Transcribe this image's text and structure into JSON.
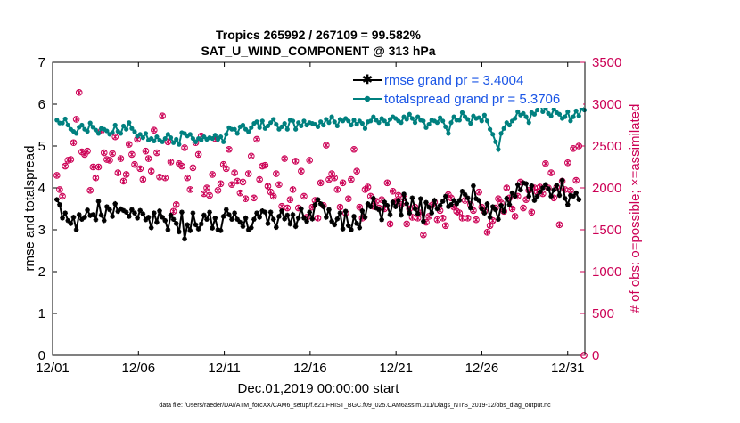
{
  "chart_data": {
    "type": "line",
    "title": "Tropics 265992 / 267109 = 99.582%",
    "subtitle": "SAT_U_WIND_COMPONENT @ 313 hPa",
    "xlabel": "Dec.01,2019 00:00:00 start",
    "ylabel_left": "rmse and totalspread",
    "ylabel_right": "# of obs: o=possible; ×=assimilated",
    "x_ticks": [
      "12/01",
      "12/06",
      "12/11",
      "12/16",
      "12/21",
      "12/26",
      "12/31"
    ],
    "x_tick_days": [
      0,
      5,
      10,
      15,
      20,
      25,
      30
    ],
    "xlim": [
      0,
      31
    ],
    "ylim_left": [
      0,
      7
    ],
    "y_ticks_left": [
      0,
      1,
      2,
      3,
      4,
      5,
      6,
      7
    ],
    "ylim_right": [
      0,
      3500
    ],
    "y_ticks_right": [
      0,
      500,
      1000,
      1500,
      2000,
      2500,
      3000,
      3500
    ],
    "colors": {
      "rmse": "#000000",
      "totalspread": "#00807f",
      "obs": "#cc0055",
      "legend_text": "#1a55e6"
    },
    "series": [
      {
        "name": "rmse grand pr = 3.4004",
        "axis": "left",
        "values": [
          3.72,
          3.6,
          3.28,
          3.4,
          3.22,
          3.15,
          3.3,
          3.0,
          3.36,
          3.25,
          3.3,
          3.47,
          3.34,
          3.36,
          3.24,
          3.68,
          3.35,
          3.22,
          3.55,
          3.48,
          3.32,
          3.62,
          3.44,
          3.5,
          3.46,
          3.42,
          3.32,
          3.48,
          3.4,
          3.28,
          3.46,
          3.38,
          3.24,
          3.3,
          3.05,
          3.4,
          3.18,
          3.45,
          3.3,
          3.22,
          3.0,
          3.35,
          3.25,
          3.15,
          2.95,
          3.42,
          2.78,
          3.12,
          2.98,
          3.4,
          3.12,
          3.02,
          3.14,
          3.35,
          3.25,
          3.42,
          3.04,
          3.28,
          3.0,
          2.98,
          3.32,
          3.48,
          3.36,
          3.25,
          3.4,
          3.25,
          3.18,
          3.08,
          3.28,
          3.0,
          3.05,
          3.25,
          3.4,
          3.3,
          3.45,
          3.42,
          3.15,
          3.42,
          3.25,
          3.06,
          3.32,
          3.45,
          3.26,
          3.35,
          3.14,
          3.36,
          3.08,
          3.28,
          3.5,
          3.28,
          3.2,
          3.42,
          3.26,
          3.6,
          3.72,
          3.62,
          3.55,
          3.3,
          3.48,
          3.2,
          3.12,
          3.26,
          3.4,
          3.02,
          3.44,
          3.1,
          3.0,
          3.32,
          3.15,
          3.05,
          3.45,
          3.3,
          3.62,
          3.55,
          3.75,
          3.52,
          3.48,
          3.24,
          3.66,
          3.58,
          3.36,
          3.66,
          3.55,
          3.7,
          3.35,
          3.85,
          3.62,
          3.4,
          3.76,
          3.5,
          3.38,
          3.74,
          3.2,
          3.65,
          3.54,
          3.4,
          3.7,
          3.5,
          3.58,
          3.68,
          3.8,
          3.55,
          3.6,
          3.7,
          3.62,
          3.7,
          3.92,
          3.84,
          3.76,
          3.52,
          4.05,
          3.74,
          3.7,
          3.5,
          3.4,
          3.62,
          3.3,
          3.55,
          3.48,
          3.25,
          3.58,
          3.44,
          3.75,
          3.6,
          3.88,
          3.8,
          4.08,
          3.95,
          4.12,
          4.1,
          3.8,
          4.05,
          3.7,
          3.8,
          3.9,
          4.0,
          4.08,
          3.98,
          3.8,
          3.95,
          4.06,
          3.82,
          4.18,
          3.75,
          3.6,
          3.82,
          3.8,
          3.88,
          3.72
        ]
      },
      {
        "name": "totalspread grand pr = 5.3706",
        "axis": "left",
        "values": [
          5.62,
          5.55,
          5.55,
          5.65,
          5.5,
          5.4,
          5.35,
          5.3,
          5.45,
          5.5,
          5.4,
          5.35,
          5.55,
          5.45,
          5.38,
          5.3,
          5.42,
          5.4,
          5.36,
          5.28,
          5.32,
          5.5,
          5.35,
          5.3,
          5.48,
          5.4,
          5.56,
          5.42,
          5.34,
          5.24,
          5.28,
          5.2,
          5.3,
          5.14,
          5.18,
          5.12,
          5.22,
          5.14,
          5.1,
          5.18,
          5.28,
          5.2,
          5.08,
          5.16,
          5.04,
          5.32,
          5.3,
          5.24,
          5.28,
          5.18,
          5.1,
          5.18,
          5.14,
          5.22,
          5.16,
          5.2,
          5.18,
          5.26,
          5.16,
          5.22,
          5.1,
          5.28,
          5.44,
          5.4,
          5.4,
          5.3,
          5.46,
          5.5,
          5.4,
          5.34,
          5.44,
          5.54,
          5.58,
          5.44,
          5.6,
          5.42,
          5.48,
          5.56,
          5.64,
          5.52,
          5.4,
          5.46,
          5.54,
          5.4,
          5.62,
          5.6,
          5.4,
          5.56,
          5.48,
          5.6,
          5.5,
          5.56,
          5.54,
          5.52,
          5.46,
          5.58,
          5.5,
          5.64,
          5.56,
          5.7,
          5.58,
          5.48,
          5.64,
          5.6,
          5.66,
          5.6,
          5.5,
          5.62,
          5.52,
          5.6,
          5.54,
          5.42,
          5.58,
          5.6,
          5.7,
          5.62,
          5.56,
          5.66,
          5.6,
          5.52,
          5.64,
          5.7,
          5.66,
          5.6,
          5.56,
          5.7,
          5.64,
          5.76,
          5.66,
          5.56,
          5.7,
          5.62,
          5.6,
          5.44,
          5.52,
          5.62,
          5.6,
          5.56,
          5.68,
          5.6,
          5.46,
          5.3,
          5.56,
          5.7,
          5.62,
          5.62,
          5.8,
          5.7,
          5.64,
          5.54,
          5.72,
          5.66,
          5.68,
          5.6,
          5.74,
          5.6,
          5.4,
          5.28,
          5.1,
          4.92,
          5.3,
          5.42,
          5.56,
          5.5,
          5.6,
          5.66,
          5.82,
          5.74,
          5.78,
          5.7,
          5.56,
          5.8,
          5.76,
          5.86,
          6.02,
          5.82,
          5.9,
          5.78,
          5.72,
          5.88,
          5.8,
          5.76,
          5.66,
          5.7,
          5.82,
          5.6,
          5.7,
          5.84,
          5.72,
          5.9,
          5.86
        ]
      },
      {
        "name": "# of obs possible",
        "axis": "right",
        "values": [
          2150,
          1980,
          1900,
          2260,
          2330,
          2340,
          2540,
          2820,
          3140,
          2430,
          2400,
          2440,
          1970,
          2250,
          2120,
          2250,
          2680,
          2420,
          2340,
          2330,
          2410,
          2610,
          2180,
          2350,
          2080,
          2160,
          2520,
          2400,
          2280,
          2580,
          2230,
          2100,
          2440,
          2350,
          2200,
          2690,
          2420,
          2130,
          2860,
          2120,
          2550,
          2310,
          1720,
          1800,
          2290,
          2260,
          2480,
          2120,
          1980,
          2240,
          2540,
          2400,
          2620,
          1930,
          2000,
          1910,
          2160,
          2590,
          1970,
          2050,
          2280,
          2230,
          2460,
          2040,
          2180,
          2080,
          1940,
          2070,
          1870,
          2170,
          2380,
          1880,
          2580,
          2100,
          2260,
          2270,
          2020,
          1950,
          1900,
          2170,
          2040,
          1780,
          2350,
          1760,
          1860,
          1980,
          2320,
          1760,
          2200,
          1900,
          1650,
          2330,
          1770,
          1850,
          1640,
          2060,
          1790,
          2510,
          2100,
          2170,
          2120,
          1980,
          1770,
          2060,
          1700,
          1870,
          2100,
          2460,
          2200,
          1770,
          1640,
          1980,
          2010,
          1900,
          1780,
          1840,
          1760,
          1860,
          1750,
          2060,
          1570,
          1960,
          1840,
          1910,
          1800,
          1880,
          1570,
          1750,
          1650,
          1770,
          1640,
          1700,
          1440,
          1590,
          1660,
          1790,
          1830,
          1620,
          1730,
          1640,
          1550,
          1920,
          1880,
          1770,
          1720,
          1700,
          1640,
          1850,
          1640,
          1800,
          1730,
          1620,
          1950,
          1770,
          1720,
          1470,
          1550,
          1610,
          1760,
          1870,
          1820,
          1720,
          2000,
          1880,
          1750,
          1660,
          1900,
          2070,
          1760,
          1860,
          1970,
          1710,
          2000,
          1950,
          2010,
          1930,
          2290,
          2000,
          2180,
          1880,
          2010,
          1560,
          2080,
          1980,
          2300,
          1970,
          2470,
          2090,
          2500,
          1890,
          2210,
          1870
        ]
      },
      {
        "name": "# of obs assimilated",
        "axis": "right",
        "values": [
          2150,
          1980,
          1900,
          2260,
          2330,
          2340,
          2540,
          2820,
          3140,
          2430,
          2400,
          2440,
          1970,
          2250,
          2120,
          2250,
          2680,
          2420,
          2340,
          2330,
          2410,
          2610,
          2180,
          2350,
          2080,
          2160,
          2520,
          2400,
          2280,
          2580,
          2230,
          2100,
          2440,
          2350,
          2200,
          2690,
          2420,
          2130,
          2860,
          2120,
          2550,
          2310,
          1720,
          1800,
          2290,
          2260,
          2480,
          2120,
          1980,
          2240,
          2540,
          2400,
          2620,
          1930,
          2000,
          1910,
          2160,
          2590,
          1970,
          2050,
          2280,
          2230,
          2460,
          2040,
          2180,
          2080,
          1940,
          2070,
          1870,
          2170,
          2380,
          1880,
          2580,
          2100,
          2260,
          2270,
          2020,
          1950,
          1900,
          2170,
          2040,
          1780,
          2350,
          1760,
          1860,
          1980,
          2320,
          1760,
          2200,
          1900,
          1650,
          2330,
          1770,
          1850,
          1640,
          2060,
          1790,
          2510,
          2100,
          2170,
          2120,
          1980,
          1770,
          2060,
          1700,
          1870,
          2100,
          2460,
          2200,
          1770,
          1640,
          1980,
          2010,
          1900,
          1780,
          1840,
          1760,
          1860,
          1750,
          2060,
          1570,
          1960,
          1840,
          1910,
          1800,
          1880,
          1570,
          1750,
          1650,
          1770,
          1640,
          1700,
          1440,
          1590,
          1660,
          1790,
          1830,
          1620,
          1730,
          1640,
          1550,
          1920,
          1880,
          1770,
          1720,
          1700,
          1640,
          1850,
          1640,
          1800,
          1730,
          1620,
          1950,
          1770,
          1720,
          1470,
          1550,
          1610,
          1760,
          1870,
          1820,
          1720,
          2000,
          1880,
          1750,
          1660,
          1900,
          2070,
          1760,
          1860,
          1970,
          1710,
          2000,
          1950,
          2010,
          1930,
          2290,
          2000,
          2180,
          1880,
          2010,
          1560,
          2080,
          1980,
          2300,
          1970,
          2470,
          2090,
          2500,
          1890,
          2210,
          1870
        ]
      }
    ],
    "legend": [
      {
        "label": "rmse grand pr = 3.4004"
      },
      {
        "label": "totalspread grand pr = 5.3706"
      }
    ],
    "legend_position": "top-right",
    "footer": "data file: /Users/raeder/DAI/ATM_forcXX/CAM6_setup/f.e21.FHIST_BGC.f09_025.CAM6assim.011/Diags_NTrS_2019-12/obs_diag_output.nc",
    "last_point_right": 0
  }
}
